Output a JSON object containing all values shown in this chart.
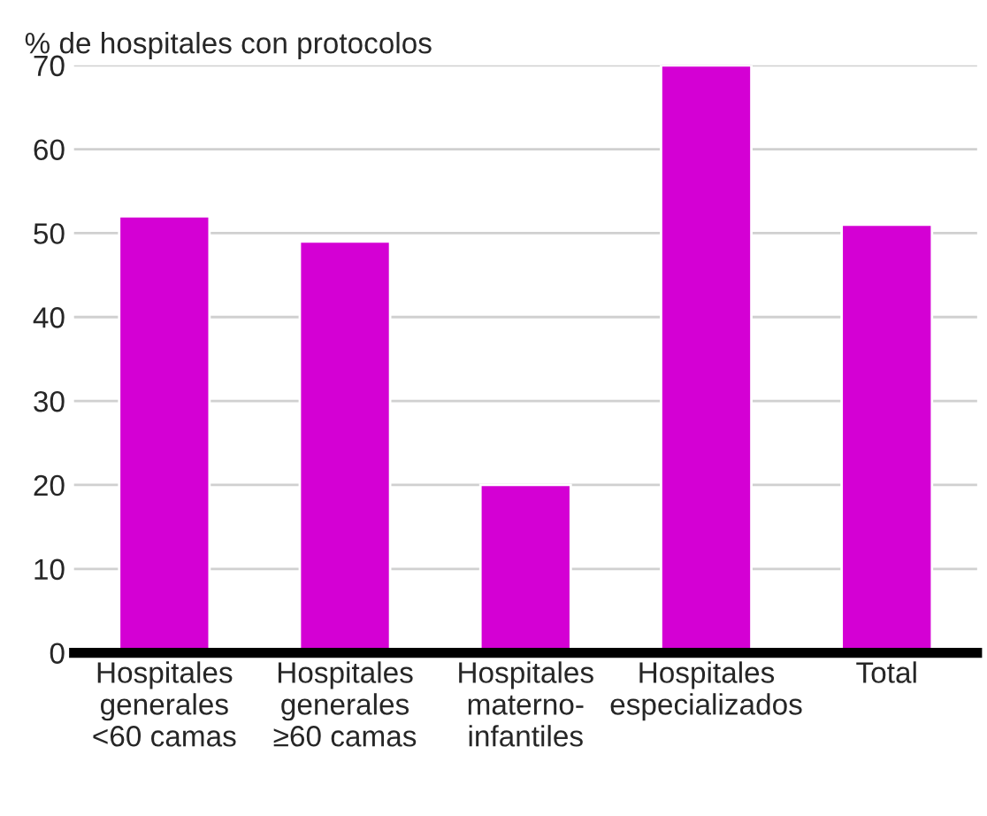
{
  "chart_data": {
    "type": "bar",
    "ylabel": "% de hospitales con protocolos",
    "categories": [
      "Hospitales\ngenerales\n<60 camas",
      "Hospitales\ngenerales\n≥60 camas",
      "Hospitales\nmaterno-\ninfantiles",
      "Hospitales\nespecializados",
      "Total"
    ],
    "values": [
      52,
      49,
      20,
      70,
      51
    ],
    "color": "#d400d4",
    "ylim": [
      0,
      70
    ],
    "yticks": [
      0,
      10,
      20,
      30,
      40,
      50,
      60,
      70
    ],
    "grid": "y"
  }
}
